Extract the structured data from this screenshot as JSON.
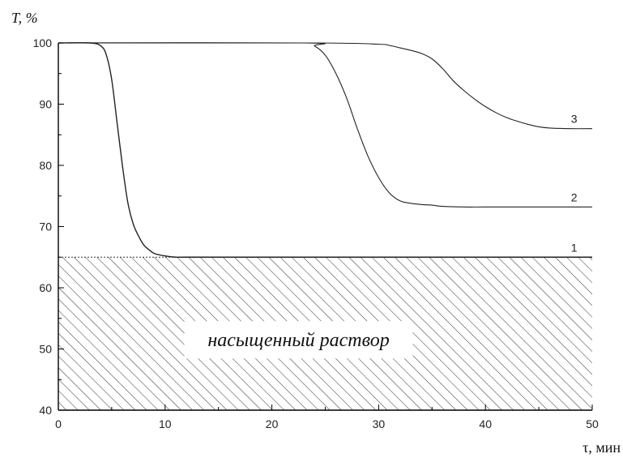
{
  "chart_data": {
    "type": "line",
    "ylabel": "T, %",
    "xlabel": "τ, мин",
    "xlim": [
      0,
      50
    ],
    "ylim": [
      40,
      100
    ],
    "x_ticks": [
      0,
      10,
      20,
      30,
      40,
      50
    ],
    "y_ticks": [
      40,
      50,
      60,
      70,
      80,
      90,
      100
    ],
    "grid": false,
    "saturated_region": {
      "label": "насыщенный раствор",
      "y_max": 65
    },
    "series": [
      {
        "name": "1",
        "x": [
          0,
          3,
          4,
          4.5,
          5,
          5.5,
          6,
          6.5,
          7,
          7.5,
          8,
          8.5,
          9,
          10,
          11,
          12,
          20,
          30,
          40,
          50
        ],
        "y": [
          100,
          100,
          99.5,
          98,
          94,
          87,
          80,
          74,
          70.5,
          68.5,
          67,
          66.2,
          65.6,
          65.2,
          65,
          65,
          65,
          65,
          65,
          65
        ]
      },
      {
        "name": "2",
        "x": [
          0,
          23,
          24,
          25,
          26,
          27,
          28,
          29,
          30,
          31,
          32,
          33,
          34,
          35,
          36,
          38,
          40,
          45,
          50
        ],
        "y": [
          100,
          100,
          99.5,
          98,
          95,
          91,
          86,
          81.5,
          78,
          75.5,
          74.2,
          73.8,
          73.6,
          73.5,
          73.3,
          73.2,
          73.2,
          73.2,
          73.2
        ]
      },
      {
        "name": "3",
        "x": [
          0,
          24,
          30,
          31,
          32,
          33,
          34,
          35,
          36,
          37,
          38,
          39,
          40,
          41,
          42,
          43,
          44,
          45,
          46,
          48,
          50
        ],
        "y": [
          100,
          100,
          99.8,
          99.6,
          99.2,
          98.8,
          98.3,
          97.4,
          95.8,
          93.8,
          92.2,
          90.8,
          89.6,
          88.6,
          87.8,
          87.2,
          86.7,
          86.3,
          86.1,
          86,
          86
        ]
      }
    ]
  },
  "style": {
    "curve_color": "#222222",
    "axis_color": "#000000",
    "hatch_color": "#333333"
  }
}
